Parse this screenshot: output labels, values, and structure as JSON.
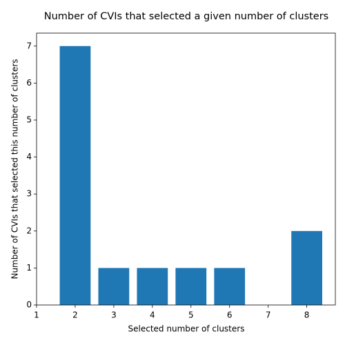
{
  "chart_data": {
    "type": "bar",
    "title": "Number of CVIs that selected a given number of clusters",
    "x_label": "Selected number of clusters",
    "y_label": "Number of CVIs that selected this number of clusters",
    "x": [
      2,
      3,
      4,
      5,
      6,
      7,
      8
    ],
    "values": [
      7,
      1,
      1,
      1,
      1,
      0,
      2
    ],
    "color": "#1f77b4",
    "xlim": [
      1,
      8.74
    ],
    "xticks": [
      1,
      2,
      3,
      4,
      5,
      6,
      7,
      8
    ],
    "ylim": [
      0,
      7.35
    ],
    "yticks": [
      0,
      1,
      2,
      3,
      4,
      5,
      6,
      7
    ],
    "grid": false
  }
}
